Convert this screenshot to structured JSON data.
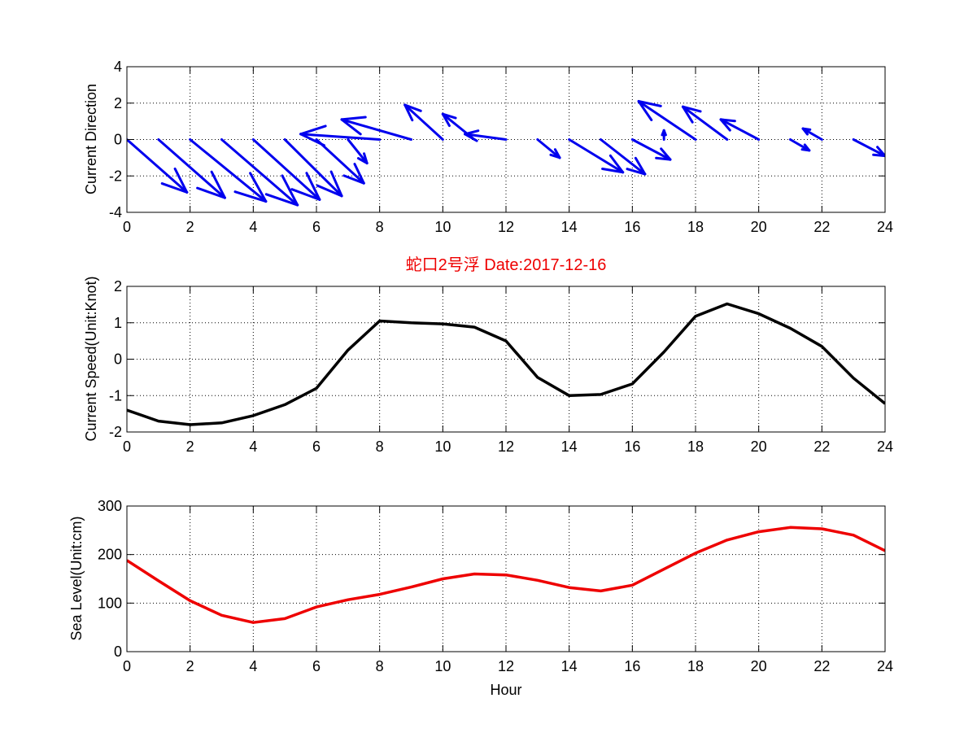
{
  "chart_data": [
    {
      "type": "quiver",
      "ylabel": "Current Direction",
      "xlim": [
        0,
        24
      ],
      "ylim": [
        -4,
        4
      ],
      "xticks": [
        0,
        2,
        4,
        6,
        8,
        10,
        12,
        14,
        16,
        18,
        20,
        22,
        24
      ],
      "yticks": [
        -4,
        -2,
        0,
        2,
        4
      ],
      "grid": true,
      "color": "#0000ee",
      "vectors": [
        {
          "x": 0,
          "u": 1.9,
          "v": -2.9
        },
        {
          "x": 1,
          "u": 2.1,
          "v": -3.2
        },
        {
          "x": 2,
          "u": 2.4,
          "v": -3.4
        },
        {
          "x": 3,
          "u": 2.4,
          "v": -3.6
        },
        {
          "x": 4,
          "u": 2.1,
          "v": -3.3
        },
        {
          "x": 5,
          "u": 1.8,
          "v": -3.1
        },
        {
          "x": 6,
          "u": 1.5,
          "v": -2.4
        },
        {
          "x": 7,
          "u": 0.6,
          "v": -1.3
        },
        {
          "x": 8,
          "u": -2.5,
          "v": 0.3
        },
        {
          "x": 9,
          "u": -2.2,
          "v": 1.1
        },
        {
          "x": 10,
          "u": -1.2,
          "v": 1.9
        },
        {
          "x": 11,
          "u": -1.0,
          "v": 1.4
        },
        {
          "x": 12,
          "u": -1.3,
          "v": 0.3
        },
        {
          "x": 13,
          "u": 0.7,
          "v": -1.0
        },
        {
          "x": 14,
          "u": 1.7,
          "v": -1.8
        },
        {
          "x": 15,
          "u": 1.4,
          "v": -1.9
        },
        {
          "x": 16,
          "u": 1.2,
          "v": -1.1
        },
        {
          "x": 17,
          "u": 0.0,
          "v": 0.5
        },
        {
          "x": 18,
          "u": -1.8,
          "v": 2.1
        },
        {
          "x": 19,
          "u": -1.4,
          "v": 1.8
        },
        {
          "x": 20,
          "u": -1.2,
          "v": 1.1
        },
        {
          "x": 21,
          "u": 0.6,
          "v": -0.6
        },
        {
          "x": 22,
          "u": -0.6,
          "v": 0.6
        },
        {
          "x": 23,
          "u": 1.0,
          "v": -0.9
        }
      ]
    },
    {
      "type": "line",
      "title": "蛇口2号浮   Date:2017-12-16",
      "ylabel": "Current Speed(Unit:Knot)",
      "xlim": [
        0,
        24
      ],
      "ylim": [
        -2,
        2
      ],
      "xticks": [
        0,
        2,
        4,
        6,
        8,
        10,
        12,
        14,
        16,
        18,
        20,
        22,
        24
      ],
      "yticks": [
        -2,
        -1,
        0,
        1,
        2
      ],
      "grid": true,
      "color": "#000000",
      "x": [
        0,
        1,
        2,
        3,
        4,
        5,
        6,
        7,
        8,
        9,
        10,
        11,
        12,
        13,
        14,
        15,
        16,
        17,
        18,
        19,
        20,
        21,
        22,
        23,
        24
      ],
      "y": [
        -1.4,
        -1.7,
        -1.8,
        -1.75,
        -1.55,
        -1.25,
        -0.8,
        0.25,
        1.05,
        1.0,
        0.97,
        0.88,
        0.5,
        -0.5,
        -1.0,
        -0.97,
        -0.68,
        0.2,
        1.18,
        1.52,
        1.25,
        0.85,
        0.35,
        -0.52,
        -1.22
      ]
    },
    {
      "type": "line",
      "xlabel": "Hour",
      "ylabel": "Sea Level(Unit:cm)",
      "xlim": [
        0,
        24
      ],
      "ylim": [
        0,
        300
      ],
      "xticks": [
        0,
        2,
        4,
        6,
        8,
        10,
        12,
        14,
        16,
        18,
        20,
        22,
        24
      ],
      "yticks": [
        0,
        100,
        200,
        300
      ],
      "grid": true,
      "color": "#ee0000",
      "x": [
        0,
        1,
        2,
        3,
        4,
        5,
        6,
        7,
        8,
        9,
        10,
        11,
        12,
        13,
        14,
        15,
        16,
        17,
        18,
        19,
        20,
        21,
        22,
        23,
        24
      ],
      "y": [
        188,
        146,
        105,
        75,
        60,
        68,
        92,
        107,
        118,
        133,
        150,
        160,
        158,
        147,
        132,
        125,
        137,
        170,
        203,
        230,
        247,
        256,
        253,
        240,
        208
      ]
    }
  ]
}
